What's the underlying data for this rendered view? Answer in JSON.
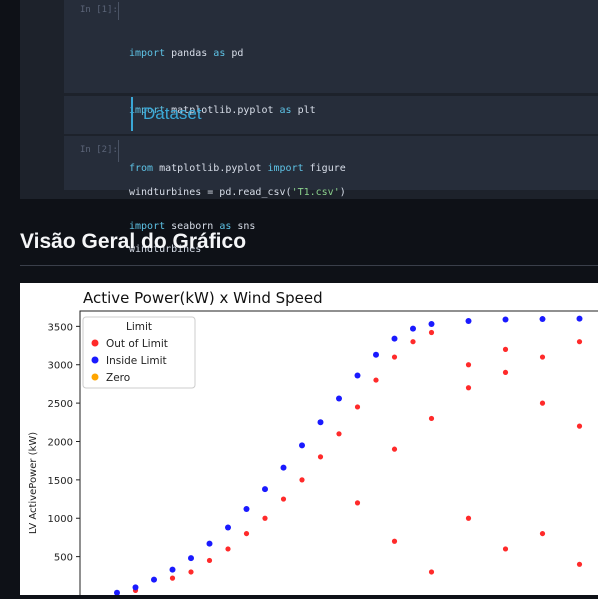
{
  "notebook": {
    "cell1": {
      "prompt": "In [1]:",
      "lines": [
        [
          "import",
          " pandas ",
          "as",
          " pd"
        ],
        [
          "import",
          " matplotlib.pyplot ",
          "as",
          " plt"
        ],
        [
          "from",
          " matplotlib.pyplot ",
          "import",
          " figure"
        ],
        [
          "import",
          " seaborn ",
          "as",
          " sns"
        ]
      ]
    },
    "markdown_heading": "Dataset",
    "cell2": {
      "prompt": "In [2]:",
      "line1_a": "windturbines = pd.read_csv(",
      "line1_str": "'T1.csv'",
      "line1_b": ")",
      "line2": "windturbines"
    }
  },
  "section_title": "Visão Geral do Gráfico",
  "colors": {
    "out_of_limit": "#ff2a2a",
    "inside_limit": "#1a1aff",
    "zero": "#ffa500",
    "page_bg": "#0e1117",
    "cell_bg": "#262d3a",
    "markdown_heading": "#3aa7d6"
  },
  "chart_data": {
    "type": "scatter",
    "title": "Active Power(kW) x Wind Speed",
    "xlabel": "",
    "ylabel": "LV ActivePower (kW)",
    "y_ticks": [
      500,
      1000,
      1500,
      2000,
      2500,
      3000,
      3500
    ],
    "legend": {
      "title": "Limit",
      "position": "top-left",
      "entries": [
        "Out of Limit",
        "Inside Limit",
        "Zero"
      ]
    },
    "series": [
      {
        "name": "Inside Limit",
        "points": [
          [
            3.5,
            30
          ],
          [
            4,
            100
          ],
          [
            4.5,
            200
          ],
          [
            5,
            330
          ],
          [
            5.5,
            480
          ],
          [
            6,
            670
          ],
          [
            6.5,
            880
          ],
          [
            7,
            1120
          ],
          [
            7.5,
            1380
          ],
          [
            8,
            1660
          ],
          [
            8.5,
            1950
          ],
          [
            9,
            2250
          ],
          [
            9.5,
            2560
          ],
          [
            10,
            2860
          ],
          [
            10.5,
            3130
          ],
          [
            11,
            3340
          ],
          [
            11.5,
            3470
          ],
          [
            12,
            3530
          ],
          [
            13,
            3570
          ],
          [
            14,
            3590
          ],
          [
            15,
            3595
          ],
          [
            16,
            3600
          ]
        ]
      },
      {
        "name": "Out of Limit",
        "points": [
          [
            4,
            60
          ],
          [
            5,
            220
          ],
          [
            5.5,
            300
          ],
          [
            6,
            450
          ],
          [
            6.5,
            600
          ],
          [
            7,
            800
          ],
          [
            7.5,
            1000
          ],
          [
            8,
            1250
          ],
          [
            8.5,
            1500
          ],
          [
            9,
            1800
          ],
          [
            9.5,
            2100
          ],
          [
            10,
            2450
          ],
          [
            10.5,
            2800
          ],
          [
            11,
            3100
          ],
          [
            11.5,
            3300
          ],
          [
            12,
            3420
          ],
          [
            10,
            1200
          ],
          [
            11,
            1900
          ],
          [
            12,
            2300
          ],
          [
            13,
            2700
          ],
          [
            14,
            2900
          ],
          [
            15,
            2500
          ],
          [
            16,
            2200
          ],
          [
            13,
            1000
          ],
          [
            14,
            600
          ],
          [
            15,
            800
          ],
          [
            16,
            400
          ],
          [
            12,
            300
          ],
          [
            11,
            700
          ],
          [
            13,
            3000
          ],
          [
            14,
            3200
          ],
          [
            15,
            3100
          ],
          [
            16,
            3300
          ]
        ]
      }
    ]
  }
}
